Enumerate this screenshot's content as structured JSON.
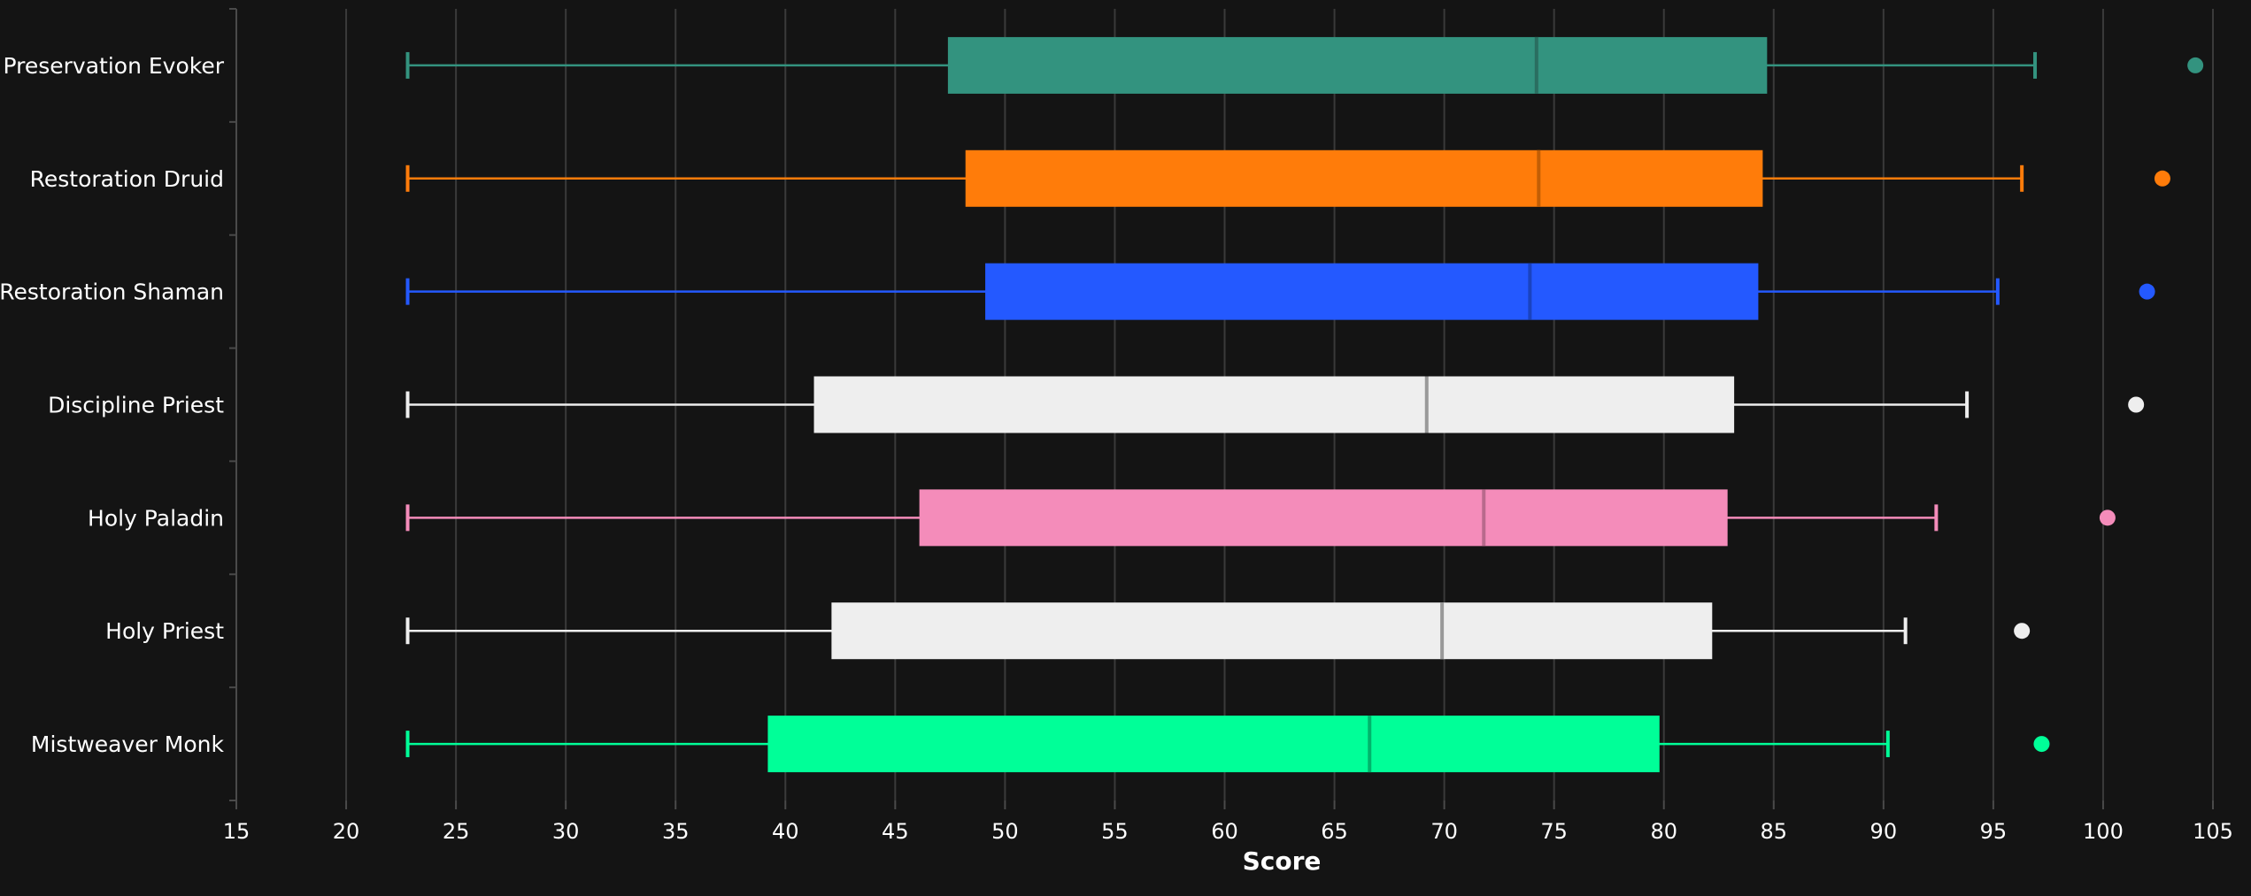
{
  "chart_data": {
    "type": "boxplot",
    "orientation": "horizontal",
    "xlabel": "Score",
    "ylabel": "",
    "xlim": [
      15,
      105
    ],
    "xticks": [
      15,
      20,
      25,
      30,
      35,
      40,
      45,
      50,
      55,
      60,
      65,
      70,
      75,
      80,
      85,
      90,
      95,
      100,
      105
    ],
    "grid": "vertical",
    "categories": [
      "Preservation Evoker",
      "Restoration Druid",
      "Restoration Shaman",
      "Discipline Priest",
      "Holy Paladin",
      "Holy Priest",
      "Mistweaver Monk"
    ],
    "series": [
      {
        "name": "Preservation Evoker",
        "color": "#33937F",
        "median_color": "#2a6e60",
        "min": 22.8,
        "q1": 47.4,
        "median": 74.2,
        "q3": 84.7,
        "max": 96.9,
        "outlier": 104.2
      },
      {
        "name": "Restoration Druid",
        "color": "#FF7C0A",
        "median_color": "#c25e05",
        "min": 22.8,
        "q1": 48.2,
        "median": 74.3,
        "q3": 84.5,
        "max": 96.3,
        "outlier": 102.7
      },
      {
        "name": "Restoration Shaman",
        "color": "#2459FF",
        "median_color": "#1a43bf",
        "min": 22.8,
        "q1": 49.1,
        "median": 73.9,
        "q3": 84.3,
        "max": 95.2,
        "outlier": 102.0
      },
      {
        "name": "Discipline Priest",
        "color": "#EEEEEE",
        "median_color": "#999999",
        "min": 22.8,
        "q1": 41.3,
        "median": 69.2,
        "q3": 83.2,
        "max": 93.8,
        "outlier": 101.5
      },
      {
        "name": "Holy Paladin",
        "color": "#F48CBA",
        "median_color": "#b86a8c",
        "min": 22.8,
        "q1": 46.1,
        "median": 71.8,
        "q3": 82.9,
        "max": 92.4,
        "outlier": 100.2
      },
      {
        "name": "Holy Priest",
        "color": "#EEEEEE",
        "median_color": "#999999",
        "min": 22.8,
        "q1": 42.1,
        "median": 69.9,
        "q3": 82.2,
        "max": 91.0,
        "outlier": 96.3
      },
      {
        "name": "Mistweaver Monk",
        "color": "#00FF98",
        "median_color": "#00b56c",
        "min": 22.8,
        "q1": 39.2,
        "median": 66.6,
        "q3": 79.8,
        "max": 90.2,
        "outlier": 97.2
      }
    ],
    "colors": {
      "background": "#141414",
      "grid": "#3a3a3a",
      "axis": "#4a4a4a",
      "text": "#ffffff"
    }
  }
}
